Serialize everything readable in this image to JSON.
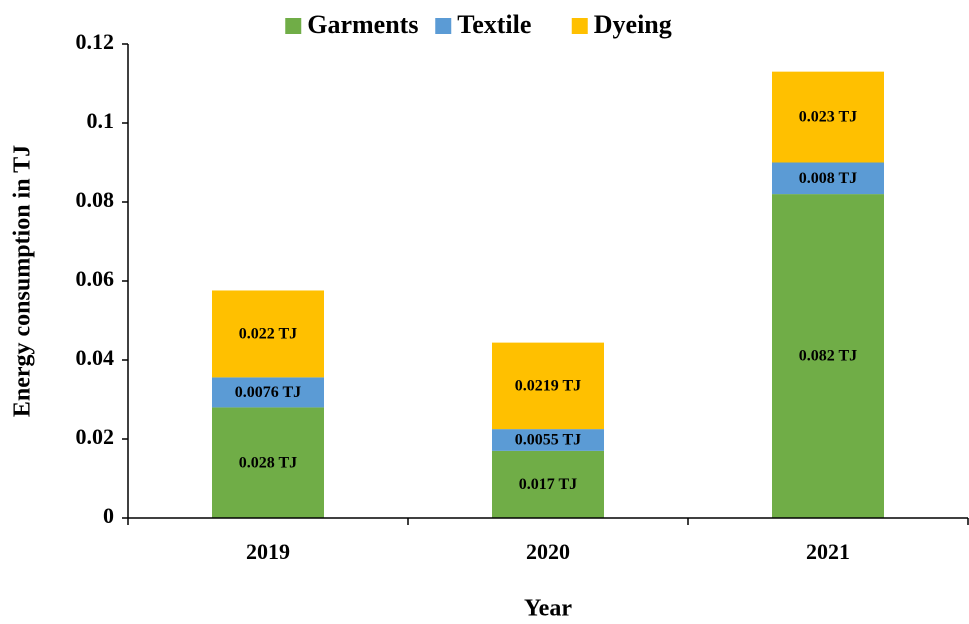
{
  "chart_data": {
    "type": "stacked_bar",
    "categories": [
      "2019",
      "2020",
      "2021"
    ],
    "series": [
      {
        "name": "Garments",
        "color": "#70ad47",
        "values": [
          0.028,
          0.017,
          0.082
        ],
        "value_labels": [
          "0.028 TJ",
          "0.017 TJ",
          "0.082 TJ"
        ]
      },
      {
        "name": "Textile",
        "color": "#5b9bd5",
        "values": [
          0.0076,
          0.0055,
          0.008
        ],
        "value_labels": [
          "0.0076 TJ",
          "0.0055 TJ",
          "0.008 TJ"
        ]
      },
      {
        "name": "Dyeing",
        "color": "#ffc000",
        "values": [
          0.022,
          0.0219,
          0.023
        ],
        "value_labels": [
          "0.022 TJ",
          "0.0219 TJ",
          "0.023 TJ"
        ]
      }
    ],
    "xlabel": "Year",
    "ylabel": "Energy consumption in TJ",
    "ylim": [
      0,
      0.12
    ],
    "yticks": [
      0,
      0.02,
      0.04,
      0.06,
      0.08,
      0.1,
      0.12
    ],
    "legend": "top",
    "grid": false
  }
}
